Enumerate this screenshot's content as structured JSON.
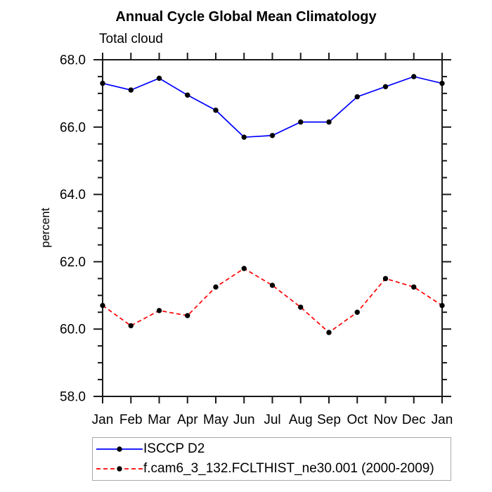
{
  "title": "Annual Cycle Global Mean Climatology",
  "subtitle": "Total cloud",
  "chart_data": {
    "type": "line",
    "categories": [
      "Jan",
      "Feb",
      "Mar",
      "Apr",
      "May",
      "Jun",
      "Jul",
      "Aug",
      "Sep",
      "Oct",
      "Nov",
      "Dec",
      "Jan"
    ],
    "ylabel": "percent",
    "ylim": [
      58.0,
      68.0
    ],
    "ytick_interval": 2.0,
    "ytick_minor_interval": 0.5,
    "ytick_labels": [
      "58.0",
      "60.0",
      "62.0",
      "64.0",
      "66.0",
      "68.0"
    ],
    "grid": false,
    "legend_position": "below-plot-left",
    "series": [
      {
        "name": "ISCCP D2",
        "color": "#0000ff",
        "line_style": "solid",
        "marker": "filled-circle",
        "marker_color": "#000000",
        "values": [
          67.3,
          67.1,
          67.45,
          66.95,
          66.5,
          65.7,
          65.75,
          66.15,
          66.15,
          66.9,
          67.2,
          67.5,
          67.3
        ]
      },
      {
        "name": "f.cam6_3_132.FCLTHIST_ne30.001 (2000-2009)",
        "color": "#ff0000",
        "line_style": "dashed",
        "marker": "filled-circle",
        "marker_color": "#000000",
        "values": [
          60.7,
          60.1,
          60.55,
          60.4,
          61.25,
          61.8,
          61.3,
          60.65,
          59.9,
          60.5,
          61.5,
          61.25,
          60.7
        ]
      }
    ]
  },
  "colors": {
    "background": "#ffffff",
    "axis": "#1a1a1a",
    "text": "#000000",
    "series_1": "#0000ff",
    "series_2": "#ff0000",
    "marker": "#000000",
    "legend_border": "#a9a9a9"
  }
}
